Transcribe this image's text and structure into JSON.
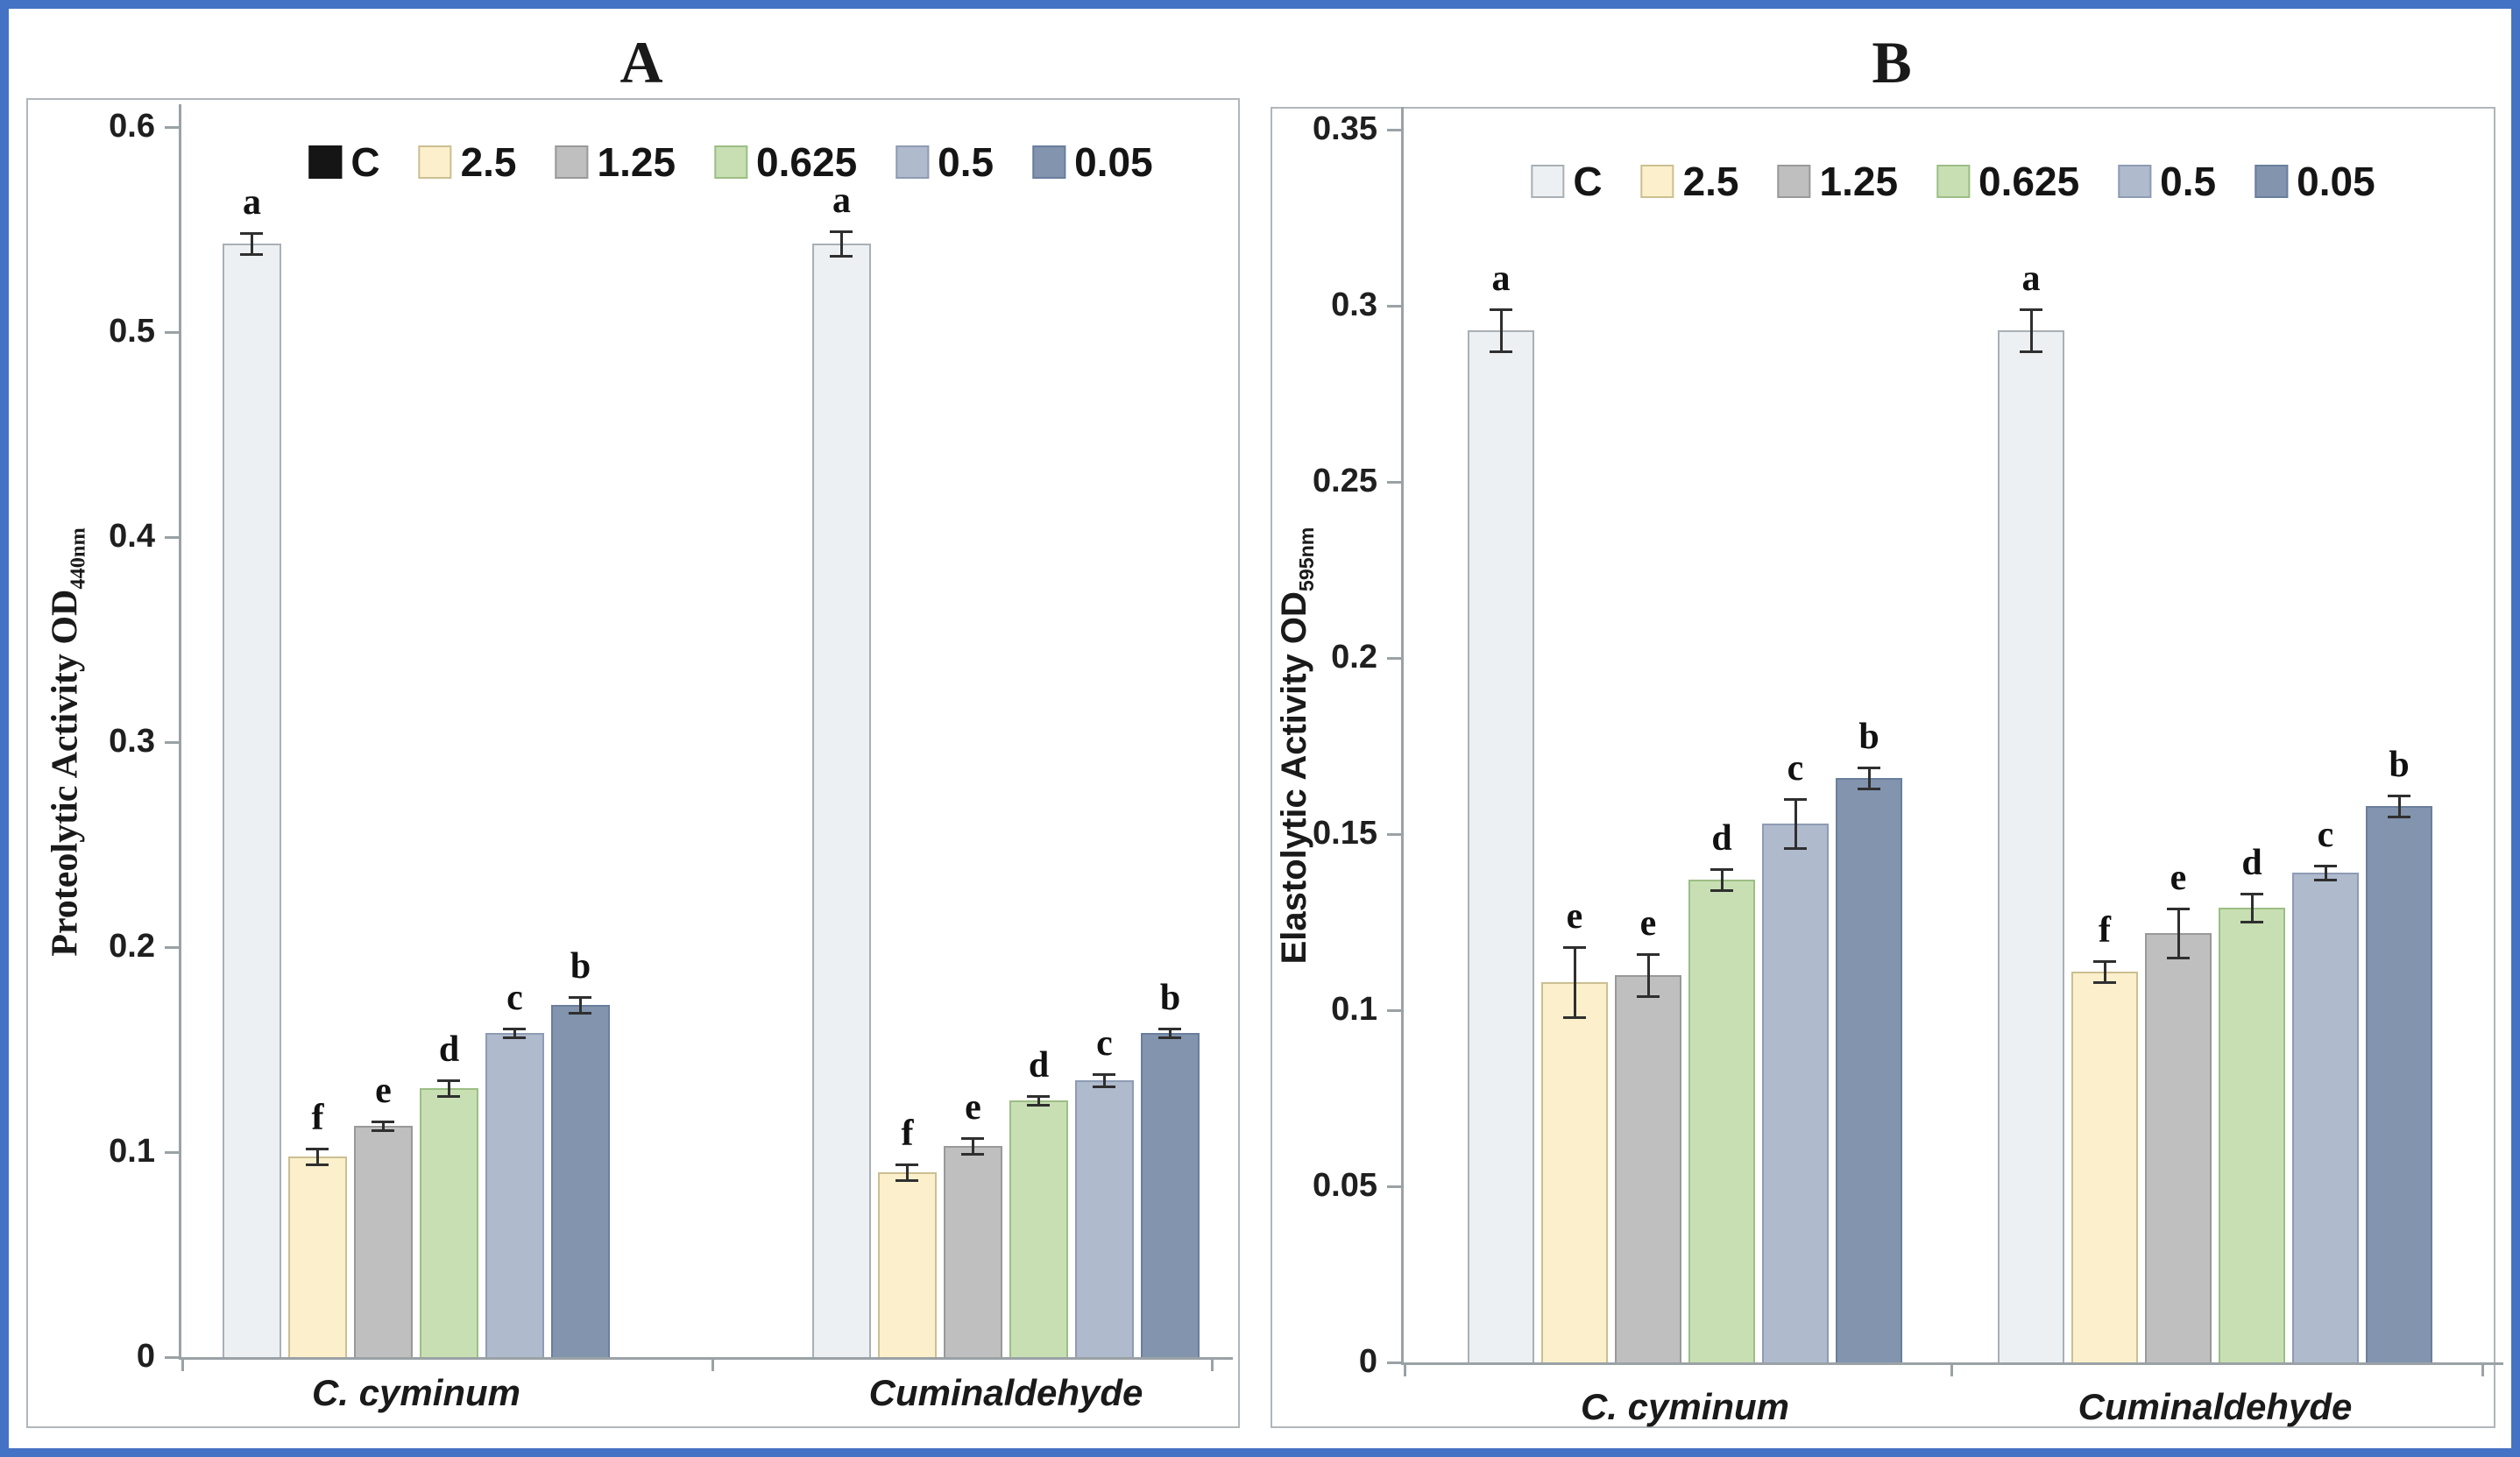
{
  "figure_title_a": "A",
  "figure_title_b": "B",
  "colors": {
    "figure_border": "#4472C4",
    "chart_box_border": "#B0B6BA",
    "axis": "#9AA2A6",
    "error_bar": "#2F2F2F",
    "text": "#1A1A1A"
  },
  "chart_data": [
    {
      "type": "bar",
      "panel": "A",
      "title": "A",
      "ylabel": "Proteolytic Activity OD",
      "ylabel_subscript": "440nm",
      "ylim": [
        0,
        0.6
      ],
      "yticks": [
        "0.6",
        "0.5",
        "0.4",
        "0.3",
        "0.2",
        "0.1",
        "0"
      ],
      "grid": false,
      "legend_position": "top-center",
      "legend_entries": [
        "C",
        "2.5",
        "1.25",
        "0.625",
        "0.5",
        "0.05"
      ],
      "categories": [
        "C. cyminum",
        "Cuminaldehyde"
      ],
      "series": [
        {
          "name": "C",
          "fill": "#EDF0F2",
          "edge": "#A8B0B6",
          "legend_fill": "#151515",
          "legend_edge": "#151515",
          "values": [
            0.543,
            0.543
          ],
          "errors": [
            0.005,
            0.006
          ],
          "letters": [
            "a",
            "a"
          ]
        },
        {
          "name": "2.5",
          "fill": "#FBF0CB",
          "edge": "#CBBF92",
          "values": [
            0.098,
            0.09
          ],
          "errors": [
            0.004,
            0.004
          ],
          "letters": [
            "f",
            "f"
          ]
        },
        {
          "name": "1.25",
          "fill": "#BFBFBF",
          "edge": "#999999",
          "values": [
            0.113,
            0.103
          ],
          "errors": [
            0.002,
            0.004
          ],
          "letters": [
            "e",
            "e"
          ]
        },
        {
          "name": "0.625",
          "fill": "#C8DFB3",
          "edge": "#9CBE85",
          "values": [
            0.131,
            0.125
          ],
          "errors": [
            0.004,
            0.002
          ],
          "letters": [
            "d",
            "d"
          ]
        },
        {
          "name": "0.5",
          "fill": "#AFBACD",
          "edge": "#8E9BB4",
          "values": [
            0.158,
            0.135
          ],
          "errors": [
            0.002,
            0.003
          ],
          "letters": [
            "c",
            "c"
          ]
        },
        {
          "name": "0.05",
          "fill": "#8294AE",
          "edge": "#6A7E9D",
          "values": [
            0.172,
            0.158
          ],
          "errors": [
            0.004,
            0.002
          ],
          "letters": [
            "b",
            "b"
          ]
        }
      ]
    },
    {
      "type": "bar",
      "panel": "B",
      "title": "B",
      "ylabel": "Elastolytic Activity OD",
      "ylabel_subscript": "595nm",
      "ylim": [
        0,
        0.35
      ],
      "yticks": [
        "0.35",
        "0.3",
        "0.25",
        "0.2",
        "0.15",
        "0.1",
        "0.05",
        "0"
      ],
      "grid": false,
      "legend_position": "top-center",
      "legend_entries": [
        "C",
        "2.5",
        "1.25",
        "0.625",
        "0.5",
        "0.05"
      ],
      "categories": [
        "C. cyminum",
        "Cuminaldehyde"
      ],
      "series": [
        {
          "name": "C",
          "fill": "#EDF0F2",
          "edge": "#A8B0B6",
          "values": [
            0.293,
            0.293
          ],
          "errors": [
            0.006,
            0.006
          ],
          "letters": [
            "a",
            "a"
          ]
        },
        {
          "name": "2.5",
          "fill": "#FBF0CB",
          "edge": "#CBBF92",
          "values": [
            0.108,
            0.111
          ],
          "errors": [
            0.01,
            0.003
          ],
          "letters": [
            "e",
            "f"
          ]
        },
        {
          "name": "1.25",
          "fill": "#BFBFBF",
          "edge": "#999999",
          "values": [
            0.11,
            0.122
          ],
          "errors": [
            0.006,
            0.007
          ],
          "letters": [
            "e",
            "e"
          ]
        },
        {
          "name": "0.625",
          "fill": "#C8DFB3",
          "edge": "#9CBE85",
          "values": [
            0.137,
            0.129
          ],
          "errors": [
            0.003,
            0.004
          ],
          "letters": [
            "d",
            "d"
          ]
        },
        {
          "name": "0.5",
          "fill": "#AFBACD",
          "edge": "#8E9BB4",
          "values": [
            0.153,
            0.139
          ],
          "errors": [
            0.007,
            0.002
          ],
          "letters": [
            "c",
            "c"
          ]
        },
        {
          "name": "0.05",
          "fill": "#8294AE",
          "edge": "#6A7E9D",
          "values": [
            0.166,
            0.158
          ],
          "errors": [
            0.003,
            0.003
          ],
          "letters": [
            "b",
            "b"
          ]
        }
      ]
    }
  ]
}
